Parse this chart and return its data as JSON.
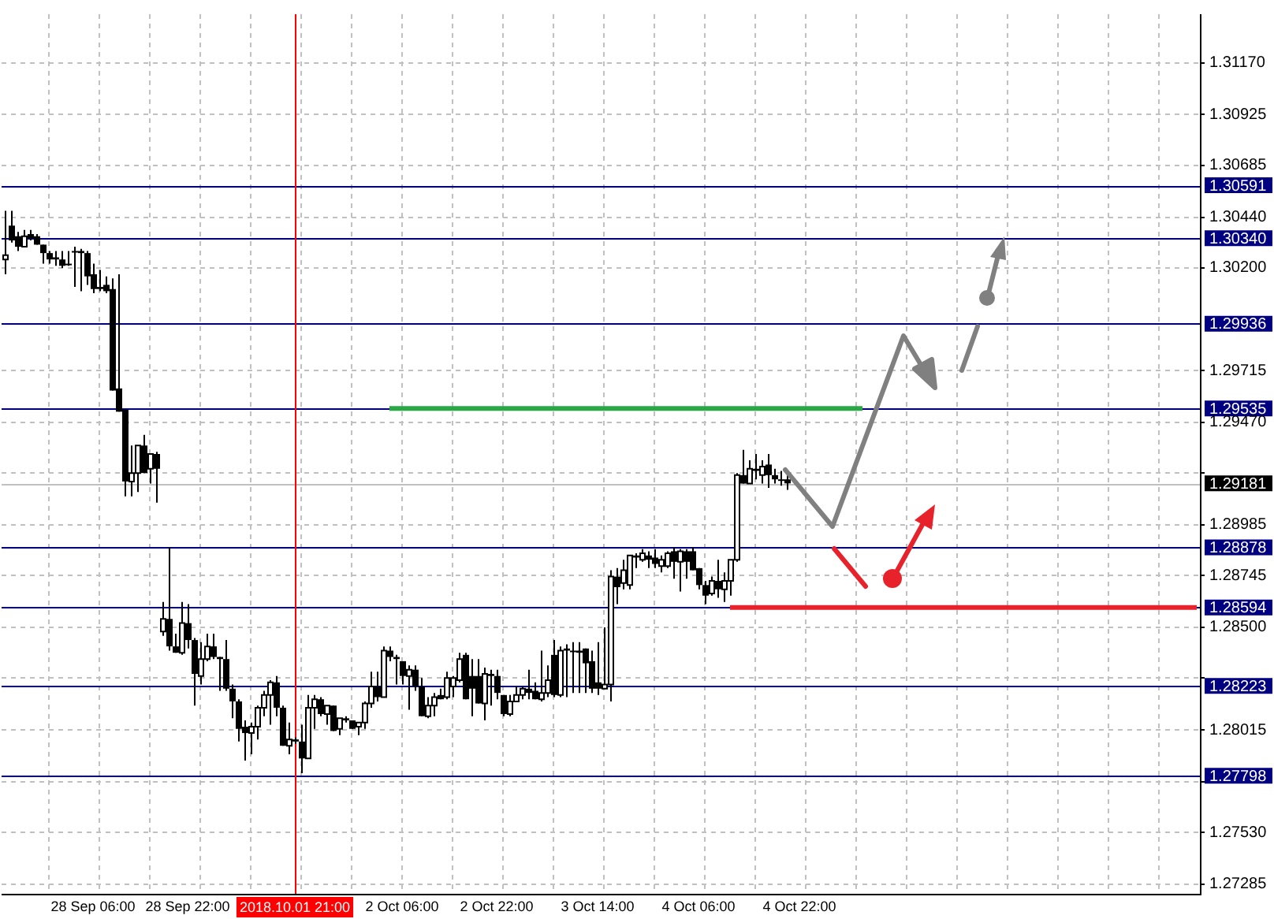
{
  "chart_data": {
    "type": "candlestick",
    "categories": [
      null,
      null,
      null,
      null,
      null,
      null,
      null,
      null,
      null,
      null,
      null,
      null,
      null,
      null,
      "28 Sep 06:00",
      null,
      null,
      null,
      null,
      null,
      null,
      null,
      null,
      null,
      null,
      null,
      null,
      null,
      null,
      "28 Sep 22:00",
      null,
      null,
      null,
      null,
      null,
      null,
      null,
      null,
      null,
      null,
      null,
      null,
      null,
      null,
      null,
      null,
      "2018.10.01 21:00",
      null,
      null,
      null,
      null,
      null,
      null,
      null,
      null,
      null,
      null,
      null,
      null,
      null,
      null,
      null,
      null,
      "2 Oct 06:00",
      null,
      null,
      null,
      null,
      null,
      null,
      null,
      null,
      null,
      null,
      null,
      null,
      null,
      null,
      "2 Oct 22:00",
      null,
      null,
      null,
      null,
      null,
      null,
      null,
      null,
      null,
      null,
      null,
      null,
      null,
      null,
      null,
      "3 Oct 14:00",
      null,
      null,
      null,
      null,
      null,
      null,
      null,
      null,
      null,
      null,
      null,
      null,
      null,
      null,
      null,
      "4 Oct 06:00",
      null,
      null,
      null,
      null,
      null,
      null,
      null,
      null,
      null,
      null,
      null,
      null,
      null,
      null,
      null,
      "4 Oct 22:00",
      null,
      null,
      null,
      null,
      null,
      null,
      null,
      null,
      null,
      null,
      null,
      null,
      null,
      null,
      null,
      null,
      null,
      null,
      null,
      null,
      null,
      null,
      null,
      null,
      null,
      null,
      null,
      null,
      null,
      null,
      null,
      null,
      null,
      null,
      null,
      null,
      null,
      null,
      null,
      null,
      null,
      null,
      null,
      null,
      null,
      null,
      null,
      null,
      null,
      null,
      null,
      null,
      null,
      null,
      null,
      null,
      null,
      null,
      null,
      null,
      null,
      null,
      null
    ],
    "ohlc": [
      [
        1.3024,
        1.3047,
        1.3017,
        1.3026
      ],
      [
        1.304,
        1.3047,
        1.3032,
        1.3033
      ],
      [
        1.3035,
        1.3037,
        1.3028,
        1.303
      ],
      [
        1.303,
        1.3038,
        1.303,
        1.3035
      ],
      [
        1.3036,
        1.3038,
        1.3033,
        1.3034
      ],
      [
        1.3035,
        1.3036,
        1.3031,
        1.3031
      ],
      [
        1.3031,
        1.3031,
        1.3022,
        1.3027
      ],
      [
        1.3027,
        1.3028,
        1.3022,
        1.3024
      ],
      [
        1.3025,
        1.3028,
        1.3021,
        1.3024
      ],
      [
        1.3024,
        1.3028,
        1.302,
        1.3021
      ],
      [
        1.3022,
        1.3028,
        1.3021,
        1.3022
      ],
      [
        1.3028,
        1.303,
        1.3011,
        1.3028
      ],
      [
        1.3028,
        1.3029,
        1.3009,
        1.3027
      ],
      [
        1.3027,
        1.3028,
        1.3012,
        1.3016
      ],
      [
        1.3017,
        1.3022,
        1.3008,
        1.301
      ],
      [
        1.3011,
        1.3019,
        1.3009,
        1.301
      ],
      [
        1.3012,
        1.3016,
        1.3008,
        1.3009
      ],
      [
        1.301,
        1.3015,
        1.2962,
        1.2962
      ],
      [
        1.2963,
        1.3017,
        1.2952,
        1.2952
      ],
      [
        1.2953,
        1.2953,
        1.2912,
        1.2919
      ],
      [
        1.2919,
        1.2936,
        1.2912,
        1.2923
      ],
      [
        1.2923,
        1.2936,
        1.2914,
        1.2936
      ],
      [
        1.2936,
        1.2941,
        1.2923,
        1.2923
      ],
      [
        1.2925,
        1.2932,
        1.2918,
        1.2932
      ],
      [
        1.2932,
        1.2933,
        1.2909,
        1.2925
      ],
      [
        1.2848,
        1.2862,
        1.2846,
        1.2854
      ],
      [
        1.2854,
        1.2888,
        1.2839,
        1.2841
      ],
      [
        1.2841,
        1.2847,
        1.2838,
        1.2838
      ],
      [
        1.2838,
        1.2862,
        1.2837,
        1.2852
      ],
      [
        1.2852,
        1.2861,
        1.284,
        1.2844
      ],
      [
        1.2844,
        1.2845,
        1.2813,
        1.2828
      ],
      [
        1.2827,
        1.2843,
        1.2823,
        1.2835
      ],
      [
        1.2835,
        1.2847,
        1.2834,
        1.2841
      ],
      [
        1.2841,
        1.2847,
        1.2835,
        1.2836
      ],
      [
        1.2836,
        1.2836,
        1.282,
        1.2835
      ],
      [
        1.2835,
        1.2844,
        1.282,
        1.2821
      ],
      [
        1.2821,
        1.2823,
        1.2807,
        1.2815
      ],
      [
        1.2815,
        1.2816,
        1.2796,
        1.2802
      ],
      [
        1.2803,
        1.2806,
        1.2787,
        1.28
      ],
      [
        1.28,
        1.2805,
        1.279,
        1.2803
      ],
      [
        1.2803,
        1.2813,
        1.2797,
        1.2812
      ],
      [
        1.2812,
        1.282,
        1.2808,
        1.2818
      ],
      [
        1.2818,
        1.2825,
        1.2804,
        1.2824
      ],
      [
        1.2824,
        1.2827,
        1.2808,
        1.2812
      ],
      [
        1.2812,
        1.2813,
        1.2794,
        1.2794
      ],
      [
        1.2794,
        1.2805,
        1.279,
        1.2797
      ],
      [
        1.2797,
        1.2798,
        1.2795,
        1.2796
      ],
      [
        1.2796,
        1.2804,
        1.2781,
        1.2788
      ],
      [
        1.2788,
        1.2818,
        1.2788,
        1.2812
      ],
      [
        1.2812,
        1.2818,
        1.2802,
        1.2816
      ],
      [
        1.2816,
        1.2817,
        1.2808,
        1.2809
      ],
      [
        1.2809,
        1.2813,
        1.2804,
        1.2813
      ],
      [
        1.2813,
        1.2813,
        1.2801,
        1.2801
      ],
      [
        1.2802,
        1.2807,
        1.2799,
        1.2807
      ],
      [
        1.2807,
        1.2808,
        1.2805,
        1.2806
      ],
      [
        1.2806,
        1.2806,
        1.2802,
        1.2802
      ],
      [
        1.2803,
        1.2805,
        1.2799,
        1.2805
      ],
      [
        1.2805,
        1.2815,
        1.2802,
        1.2814
      ],
      [
        1.2814,
        1.2829,
        1.2812,
        1.2822
      ],
      [
        1.2822,
        1.2829,
        1.2815,
        1.2817
      ],
      [
        1.2817,
        1.2841,
        1.2817,
        1.2839
      ],
      [
        1.2839,
        1.2841,
        1.2834,
        1.2836
      ],
      [
        1.2836,
        1.2837,
        1.2823,
        1.2835
      ],
      [
        1.2834,
        1.2834,
        1.2823,
        1.2827
      ],
      [
        1.2827,
        1.2832,
        1.2811,
        1.283
      ],
      [
        1.283,
        1.2832,
        1.282,
        1.2822
      ],
      [
        1.2822,
        1.2826,
        1.2808,
        1.2808
      ],
      [
        1.2808,
        1.2817,
        1.2807,
        1.2813
      ],
      [
        1.2813,
        1.2819,
        1.2808,
        1.2817
      ],
      [
        1.2818,
        1.2821,
        1.2816,
        1.2816
      ],
      [
        1.2817,
        1.2829,
        1.2816,
        1.2826
      ],
      [
        1.2822,
        1.2827,
        1.2817,
        1.2826
      ],
      [
        1.2825,
        1.2838,
        1.2824,
        1.2835
      ],
      [
        1.2837,
        1.2838,
        1.2816,
        1.2816
      ],
      [
        1.2827,
        1.2835,
        1.2808,
        1.2821
      ],
      [
        1.2827,
        1.2835,
        1.2814,
        1.2814
      ],
      [
        1.2814,
        1.2831,
        1.2806,
        1.2828
      ],
      [
        1.2828,
        1.283,
        1.2813,
        1.2827
      ],
      [
        1.2827,
        1.283,
        1.2816,
        1.2819
      ],
      [
        1.2818,
        1.2818,
        1.2808,
        1.2809
      ],
      [
        1.2809,
        1.2818,
        1.2808,
        1.2815
      ],
      [
        1.2815,
        1.2822,
        1.2815,
        1.2818
      ],
      [
        1.2818,
        1.2822,
        1.2816,
        1.2821
      ],
      [
        1.2821,
        1.283,
        1.2816,
        1.2819
      ],
      [
        1.282,
        1.2824,
        1.2816,
        1.2816
      ],
      [
        1.2816,
        1.2839,
        1.2815,
        1.2819
      ],
      [
        1.2819,
        1.2832,
        1.2817,
        1.2825
      ],
      [
        1.2837,
        1.2844,
        1.2817,
        1.2818
      ],
      [
        1.2818,
        1.2841,
        1.2817,
        1.2839
      ],
      [
        1.284,
        1.2842,
        1.2817,
        1.2839
      ],
      [
        1.2839,
        1.2843,
        1.2819,
        1.2839
      ],
      [
        1.2839,
        1.2843,
        1.2819,
        1.2838
      ],
      [
        1.284,
        1.284,
        1.2819,
        1.2833
      ],
      [
        1.2834,
        1.2839,
        1.2819,
        1.2821
      ],
      [
        1.2824,
        1.2843,
        1.2818,
        1.2821
      ],
      [
        1.2821,
        1.285,
        1.2821,
        1.2823
      ],
      [
        1.2823,
        1.2877,
        1.2815,
        1.2874
      ],
      [
        1.2874,
        1.2878,
        1.2861,
        1.2869
      ],
      [
        1.2871,
        1.2882,
        1.2868,
        1.2877
      ],
      [
        1.287,
        1.2884,
        1.2868,
        1.2884
      ],
      [
        1.2884,
        1.2885,
        1.2878,
        1.2883
      ],
      [
        1.2882,
        1.2887,
        1.2881,
        1.2885
      ],
      [
        1.2884,
        1.2886,
        1.2878,
        1.2882
      ],
      [
        1.2883,
        1.2887,
        1.2878,
        1.288
      ],
      [
        1.2879,
        1.2884,
        1.2876,
        1.2882
      ],
      [
        1.2879,
        1.2886,
        1.2878,
        1.2885
      ],
      [
        1.2886,
        1.2888,
        1.2873,
        1.2881
      ],
      [
        1.2881,
        1.2887,
        1.2867,
        1.2886
      ],
      [
        1.2886,
        1.2887,
        1.2873,
        1.2881
      ],
      [
        1.2886,
        1.2888,
        1.2877,
        1.2877
      ],
      [
        1.2878,
        1.2878,
        1.2868,
        1.287
      ],
      [
        1.287,
        1.2872,
        1.2861,
        1.2865
      ],
      [
        1.2866,
        1.2874,
        1.2865,
        1.2872
      ],
      [
        1.2872,
        1.2882,
        1.2864,
        1.2868
      ],
      [
        1.2868,
        1.2876,
        1.2862,
        1.2872
      ],
      [
        1.2872,
        1.2882,
        1.2865,
        1.2882
      ],
      [
        1.2882,
        1.2923,
        1.2881,
        1.2922
      ],
      [
        1.2922,
        1.2934,
        1.2918,
        1.2918
      ],
      [
        1.2918,
        1.2929,
        1.2918,
        1.2925
      ],
      [
        1.2925,
        1.2932,
        1.292,
        1.2924
      ],
      [
        1.2922,
        1.2929,
        1.2918,
        1.2926
      ],
      [
        1.2927,
        1.2932,
        1.2916,
        1.2922
      ],
      [
        1.2922,
        1.2925,
        1.2918,
        1.292
      ],
      [
        1.292,
        1.2924,
        1.2917,
        1.292
      ],
      [
        1.292,
        1.2923,
        1.2915,
        1.29181
      ],
      null,
      null,
      null,
      null,
      null,
      null,
      null,
      null,
      null,
      null,
      null,
      null,
      null,
      null,
      null,
      null,
      null,
      null,
      null,
      null,
      null,
      null,
      null,
      null,
      null,
      null,
      null,
      null,
      null,
      null,
      null,
      null,
      null,
      null,
      null,
      null,
      null,
      null,
      null,
      null,
      null,
      null,
      null,
      null,
      null,
      null,
      null,
      null,
      null,
      null,
      null,
      null,
      null,
      null,
      null,
      null,
      null,
      null,
      null,
      null,
      null,
      null,
      null,
      null,
      null
    ],
    "series": [
      {
        "type": "line",
        "color": "#2aa845",
        "values": [
          null,
          null,
          null,
          null,
          null,
          null,
          null,
          null,
          null,
          null,
          null,
          null,
          null,
          null,
          null,
          null,
          null,
          null,
          null,
          null,
          null,
          null,
          null,
          null,
          null,
          null,
          null,
          null,
          null,
          null,
          null,
          null,
          null,
          null,
          null,
          null,
          null,
          null,
          null,
          null,
          null,
          null,
          null,
          null,
          null,
          null,
          null,
          null,
          null,
          null,
          null,
          null,
          null,
          null,
          null,
          null,
          null,
          null,
          null,
          null,
          null,
          1.29535,
          null,
          null,
          null,
          null,
          null,
          null,
          null,
          null,
          null,
          null,
          null,
          null,
          null,
          null,
          null,
          null,
          null,
          null,
          null,
          null,
          null,
          null,
          null,
          null,
          null,
          null,
          null,
          null,
          null,
          null,
          null,
          null,
          null,
          null,
          null,
          null,
          null,
          null,
          null,
          null,
          null,
          null,
          null,
          null,
          null,
          null,
          null,
          null,
          null,
          null,
          null,
          null,
          null,
          null,
          null,
          null,
          null,
          null,
          null,
          null,
          null,
          null,
          null,
          null,
          null,
          null,
          null,
          null,
          null,
          null,
          null,
          null,
          null,
          null,
          1.29535,
          null,
          null,
          null,
          null,
          null,
          null,
          null,
          null,
          null,
          null,
          null,
          null,
          null,
          null,
          null,
          null,
          null,
          null,
          null,
          null,
          null,
          null,
          null,
          null,
          null,
          null,
          null,
          null,
          null,
          null,
          null,
          null,
          null,
          null,
          null,
          null,
          null,
          null,
          null,
          null,
          null,
          null,
          null,
          null,
          null,
          null,
          null,
          null,
          null,
          null,
          null,
          null,
          null
        ]
      },
      {
        "type": "line",
        "color": "#e8222a",
        "values": [
          null,
          null,
          null,
          null,
          null,
          null,
          null,
          null,
          null,
          null,
          null,
          null,
          null,
          null,
          null,
          null,
          null,
          null,
          null,
          null,
          null,
          null,
          null,
          null,
          null,
          null,
          null,
          null,
          null,
          null,
          null,
          null,
          null,
          null,
          null,
          null,
          null,
          null,
          null,
          null,
          null,
          null,
          null,
          null,
          null,
          null,
          null,
          null,
          null,
          null,
          null,
          null,
          null,
          null,
          null,
          null,
          null,
          null,
          null,
          null,
          null,
          null,
          null,
          null,
          null,
          null,
          null,
          null,
          null,
          null,
          null,
          null,
          null,
          null,
          null,
          null,
          null,
          null,
          null,
          null,
          null,
          null,
          null,
          null,
          null,
          null,
          null,
          null,
          null,
          null,
          null,
          null,
          null,
          null,
          null,
          null,
          null,
          null,
          null,
          null,
          null,
          null,
          null,
          null,
          null,
          null,
          null,
          null,
          null,
          null,
          null,
          null,
          null,
          null,
          null,
          1.28594,
          null,
          null,
          null,
          null,
          null,
          null,
          null,
          null,
          null,
          null,
          null,
          null,
          null,
          null,
          null,
          null,
          null,
          null,
          null,
          null,
          null,
          null,
          null,
          null,
          null,
          null,
          null,
          null,
          null,
          null,
          null,
          null,
          null,
          null,
          null,
          null,
          null,
          null,
          null,
          null,
          null,
          null,
          null,
          null,
          null,
          null,
          null,
          null,
          null,
          null,
          null,
          null,
          null,
          null,
          null,
          null,
          null,
          null,
          null,
          null,
          null,
          null,
          null,
          null,
          null,
          null,
          null,
          null,
          null,
          null,
          null,
          null,
          null,
          1.28594
        ]
      }
    ],
    "ylim": [
      1.2724,
      1.314
    ],
    "yticks": [
      {
        "value": 1.3117,
        "label": "1.31170"
      },
      {
        "value": 1.30925,
        "label": "1.30925"
      },
      {
        "value": 1.30685,
        "label": "1.30685"
      },
      {
        "value": 1.3044,
        "label": "1.30440"
      },
      {
        "value": 1.302,
        "label": "1.30200"
      },
      {
        "value": 1.29715,
        "label": "1.29715"
      },
      {
        "value": 1.2947,
        "label": "1.29470"
      },
      {
        "value": 1.2923,
        "label": null
      },
      {
        "value": 1.28985,
        "label": "1.28985"
      },
      {
        "value": 1.28745,
        "label": "1.28745"
      },
      {
        "value": 1.285,
        "label": "1.28500"
      },
      {
        "value": 1.2826,
        "label": null
      },
      {
        "value": 1.28015,
        "label": "1.28015"
      },
      {
        "value": 1.2777,
        "label": null
      },
      {
        "value": 1.2753,
        "label": "1.27530"
      },
      {
        "value": 1.27285,
        "label": "1.27285"
      }
    ],
    "ref_lines": [
      {
        "axis": "y",
        "value": 1.30591,
        "label": "1.30591",
        "color": "#000080"
      },
      {
        "axis": "y",
        "value": 1.3034,
        "label": "1.30340",
        "color": "#000080"
      },
      {
        "axis": "y",
        "value": 1.29936,
        "label": "1.29936",
        "color": "#000080"
      },
      {
        "axis": "y",
        "value": 1.29535,
        "label": "1.29535",
        "color": "#000080"
      },
      {
        "axis": "y",
        "value": 1.29181,
        "label": "1.29181",
        "color": "#c0c0c0"
      },
      {
        "axis": "y",
        "value": 1.28878,
        "label": "1.28878",
        "color": "#000080"
      },
      {
        "axis": "y",
        "value": 1.28594,
        "label": "1.28594",
        "color": "#000080"
      },
      {
        "axis": "y",
        "value": 1.28223,
        "label": "1.28223",
        "color": "#000080"
      },
      {
        "axis": "y",
        "value": 1.27798,
        "label": "1.27798",
        "color": "#000080"
      },
      {
        "axis": "x",
        "value": "2018.10.01 21:00",
        "color": "#ff0000"
      }
    ],
    "grid": true,
    "legend": false,
    "marker": "none"
  }
}
